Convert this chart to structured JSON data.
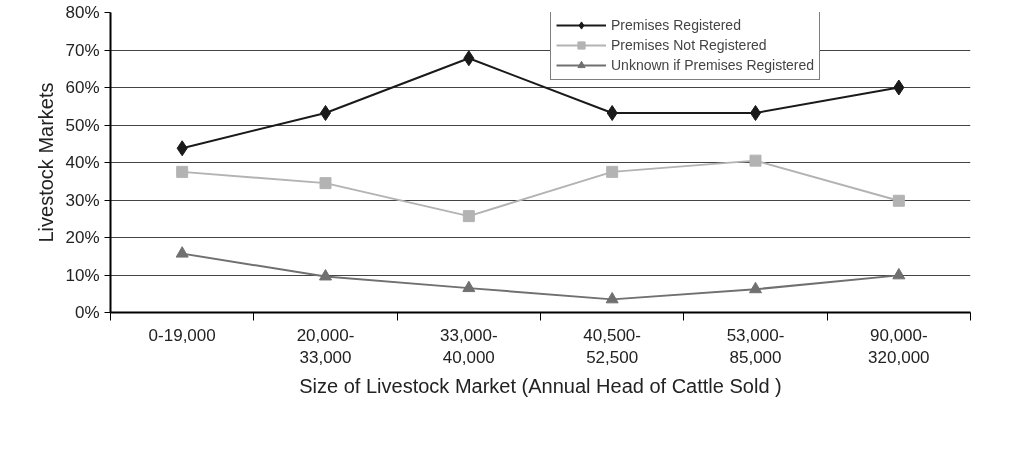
{
  "chart_data": {
    "type": "line",
    "xlabel": "Size of Livestock Market (Annual Head of Cattle Sold )",
    "ylabel": "Livestock Markets",
    "categories": [
      "0-19,000",
      "20,000-33,000",
      "33,000-40,000",
      "40,500-52,500",
      "53,000-85,000",
      "90,000-320,000"
    ],
    "series": [
      {
        "name": "Premises Registered",
        "color": "#1a1a1a",
        "marker": "diamond",
        "values": [
          43.8,
          53.2,
          67.8,
          53.2,
          53.2,
          60.0
        ]
      },
      {
        "name": "Premises Not Registered",
        "color": "#b3b3b3",
        "marker": "square",
        "values": [
          37.5,
          34.5,
          25.7,
          37.5,
          40.5,
          29.8
        ]
      },
      {
        "name": "Unknown if Premises Registered",
        "color": "#707070",
        "marker": "triangle",
        "values": [
          15.7,
          9.6,
          6.5,
          3.5,
          6.2,
          9.9
        ]
      }
    ],
    "ylim": [
      0,
      80
    ],
    "yticks": [
      {
        "value": 0,
        "label": "0%"
      },
      {
        "value": 10,
        "label": "10%"
      },
      {
        "value": 20,
        "label": "20%"
      },
      {
        "value": 30,
        "label": "30%"
      },
      {
        "value": 40,
        "label": "40%"
      },
      {
        "value": 50,
        "label": "50%"
      },
      {
        "value": 60,
        "label": "60%"
      },
      {
        "value": 70,
        "label": "70%"
      },
      {
        "value": 80,
        "label": "80%"
      }
    ],
    "grid": "y",
    "legend": "top right",
    "line_style": "solid"
  }
}
